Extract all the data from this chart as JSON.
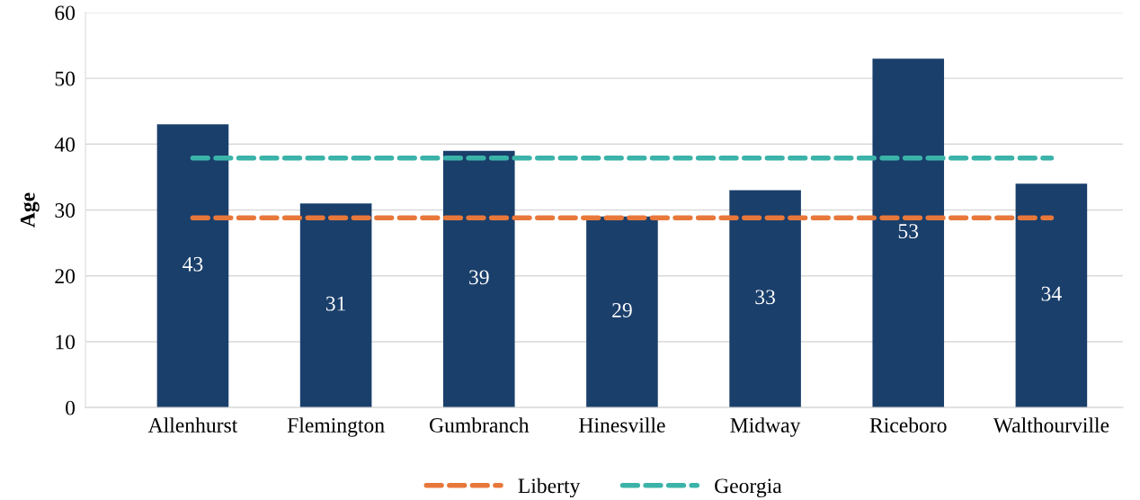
{
  "chart_data": {
    "type": "bar",
    "ylabel": "Age",
    "categories": [
      "Allenhurst",
      "Flemington",
      "Gumbranch",
      "Hinesville",
      "Midway",
      "Riceboro",
      "Walthourville"
    ],
    "series": [
      {
        "color": "#1a3f6b",
        "values": [
          43,
          31,
          39,
          29,
          33,
          53,
          34
        ],
        "data_labels": true
      },
      {
        "type": "line",
        "name": "Liberty",
        "color": "#e8773a",
        "line_style": "dashed",
        "values": [
          28.8,
          28.8,
          28.8,
          28.8,
          28.8,
          28.8,
          28.8
        ]
      },
      {
        "type": "line",
        "name": "Georgia",
        "color": "#3bb3a8",
        "line_style": "dashed",
        "values": [
          37.9,
          37.9,
          37.9,
          37.9,
          37.9,
          37.9,
          37.9
        ]
      }
    ],
    "ylim": [
      0,
      60
    ],
    "yticks": [
      0,
      10,
      20,
      30,
      40,
      50,
      60
    ],
    "grid": "y",
    "legend": "bottom"
  }
}
